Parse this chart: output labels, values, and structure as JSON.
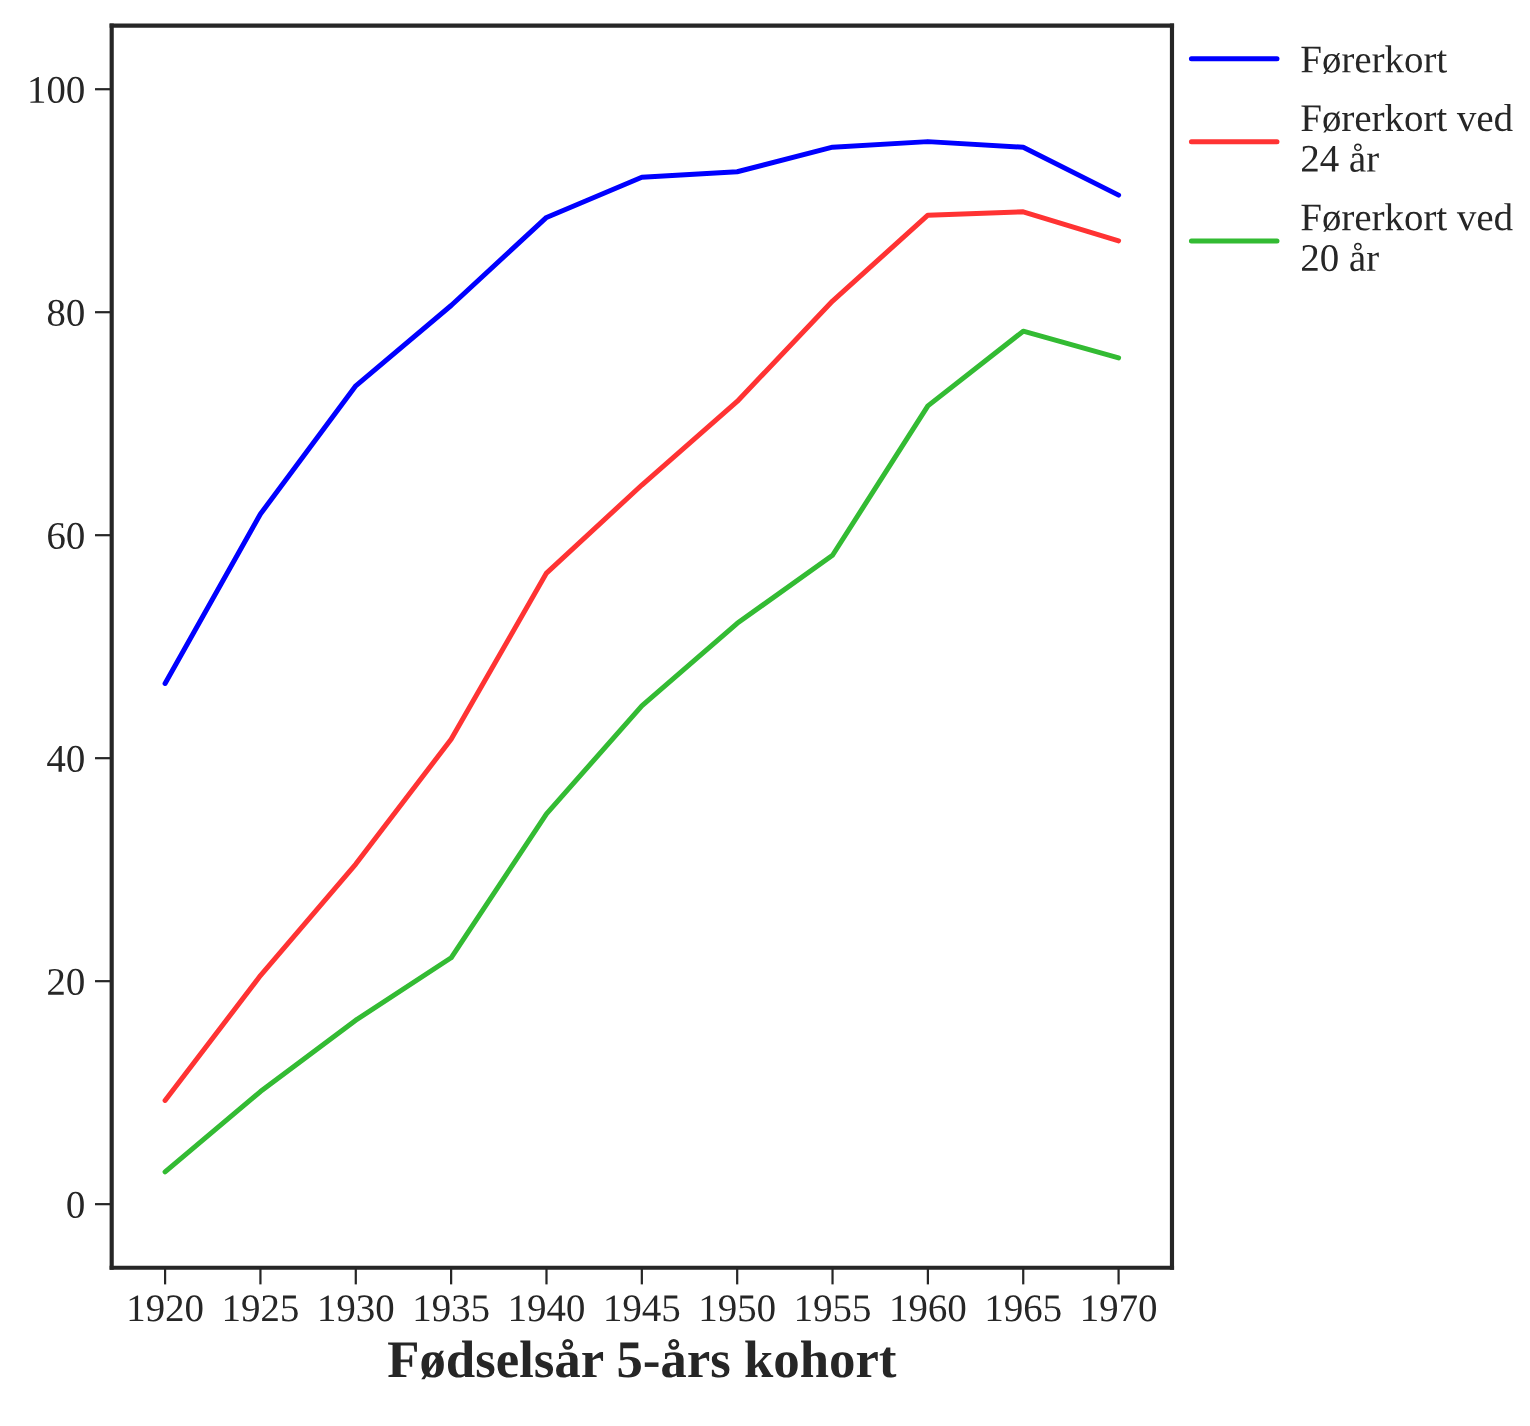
{
  "chart_data": {
    "type": "line",
    "xlabel": "Fødselsår 5-års kohort",
    "x": [
      1920,
      1925,
      1930,
      1935,
      1940,
      1945,
      1950,
      1955,
      1960,
      1965,
      1970
    ],
    "series": [
      {
        "name": "Førerkort",
        "color": "#0000ff",
        "values": [
          46.7,
          61.9,
          73.4,
          80.6,
          88.5,
          92.1,
          92.6,
          94.8,
          95.3,
          94.8,
          90.5
        ]
      },
      {
        "name": "Førerkort ved\n24 år",
        "color": "#ff3333",
        "values": [
          9.3,
          20.5,
          30.5,
          41.7,
          56.6,
          64.5,
          72.0,
          81.0,
          88.7,
          89.0,
          86.4
        ]
      },
      {
        "name": "Førerkort ved\n20 år",
        "color": "#33bb33",
        "values": [
          2.9,
          10.1,
          16.5,
          22.1,
          35.0,
          44.7,
          52.1,
          58.2,
          71.6,
          78.3,
          75.9
        ]
      }
    ],
    "xlim": [
      1917.2,
      1972.8
    ],
    "ylim": [
      -5.7,
      105.7
    ],
    "xticks": [
      1920,
      1925,
      1930,
      1935,
      1940,
      1945,
      1950,
      1955,
      1960,
      1965,
      1970
    ],
    "yticks": [
      0,
      20,
      40,
      60,
      80,
      100
    ],
    "grid": false,
    "legend": "top right",
    "marker": "none",
    "line_style": "solid"
  }
}
